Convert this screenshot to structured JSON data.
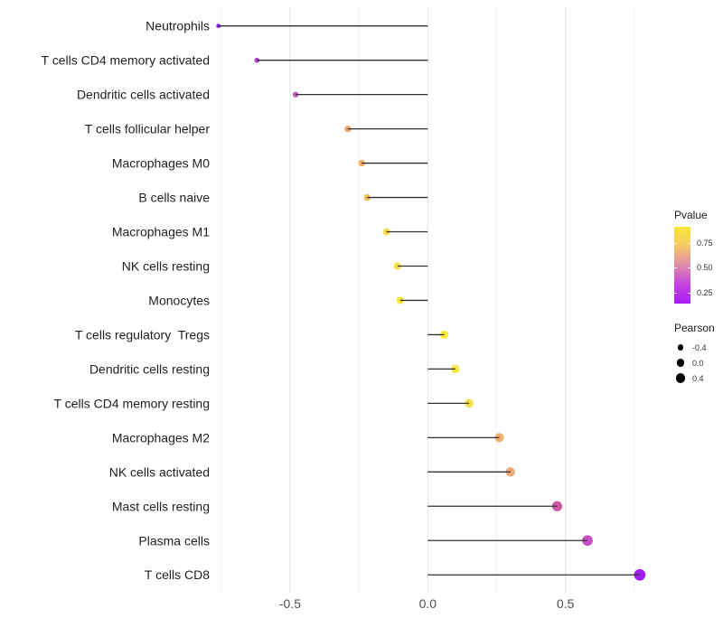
{
  "chart_data": {
    "type": "scatter",
    "variant": "lollipop",
    "title": "",
    "xlabel": "",
    "ylabel": "",
    "baseline": 0,
    "grid": "vertical-only",
    "x_axis": {
      "range": [
        -0.77,
        1.05
      ],
      "major_ticks": [
        {
          "value": -0.5,
          "label": "-0.5"
        },
        {
          "value": 0.0,
          "label": "0.0"
        },
        {
          "value": 0.5,
          "label": "0.5"
        }
      ],
      "minor_ticks": [
        -0.75,
        -0.25,
        0.25,
        0.75
      ]
    },
    "points": [
      {
        "label": "Neutrophils",
        "pearson": -0.76,
        "color": "#9620E8"
      },
      {
        "label": "T cells CD4 memory activated",
        "pearson": -0.62,
        "color": "#A73BCD"
      },
      {
        "label": "Dendritic cells activated",
        "pearson": -0.48,
        "color": "#C558BC"
      },
      {
        "label": "T cells follicular helper",
        "pearson": -0.29,
        "color": "#EDA571"
      },
      {
        "label": "Macrophages M0",
        "pearson": -0.24,
        "color": "#F0B464"
      },
      {
        "label": "B cells naive",
        "pearson": -0.22,
        "color": "#F3C258"
      },
      {
        "label": "Macrophages M1",
        "pearson": -0.15,
        "color": "#F6DC4A"
      },
      {
        "label": "NK cells resting",
        "pearson": -0.11,
        "color": "#F7E442"
      },
      {
        "label": "Monocytes",
        "pearson": -0.1,
        "color": "#F8E73E"
      },
      {
        "label": "T cells regulatory  Tregs",
        "pearson": 0.06,
        "color": "#FAEC39"
      },
      {
        "label": "Dendritic cells resting",
        "pearson": 0.1,
        "color": "#F8E741"
      },
      {
        "label": "T cells CD4 memory resting",
        "pearson": 0.15,
        "color": "#F6DE4A"
      },
      {
        "label": "Macrophages M2",
        "pearson": 0.26,
        "color": "#EFB26C"
      },
      {
        "label": "NK cells activated",
        "pearson": 0.3,
        "color": "#EEA878"
      },
      {
        "label": "Mast cells resting",
        "pearson": 0.47,
        "color": "#CD59A6"
      },
      {
        "label": "Plasma cells",
        "pearson": 0.58,
        "color": "#C64FC8"
      },
      {
        "label": "T cells CD8",
        "pearson": 0.77,
        "color": "#A21EF0"
      }
    ],
    "legend_pvalue": {
      "title": "Pvalue",
      "ticks": [
        "0.75",
        "0.50",
        "0.25"
      ],
      "gradient": [
        "#F9E636",
        "#F5C863",
        "#E28AAC",
        "#C443DF",
        "#A81CF0"
      ]
    },
    "legend_pearson": {
      "title": "Pearson",
      "entries": [
        {
          "label": "-0.4",
          "value": -0.4
        },
        {
          "label": "0.0",
          "value": 0.0
        },
        {
          "label": "0.4",
          "value": 0.4
        }
      ]
    },
    "colors": {
      "stem": "#303030",
      "grid_major": "#E4E4E4",
      "grid_minor": "#F1F1F1",
      "axis_text": "#4D4D4D",
      "category_text": "#1F1F1F"
    }
  }
}
